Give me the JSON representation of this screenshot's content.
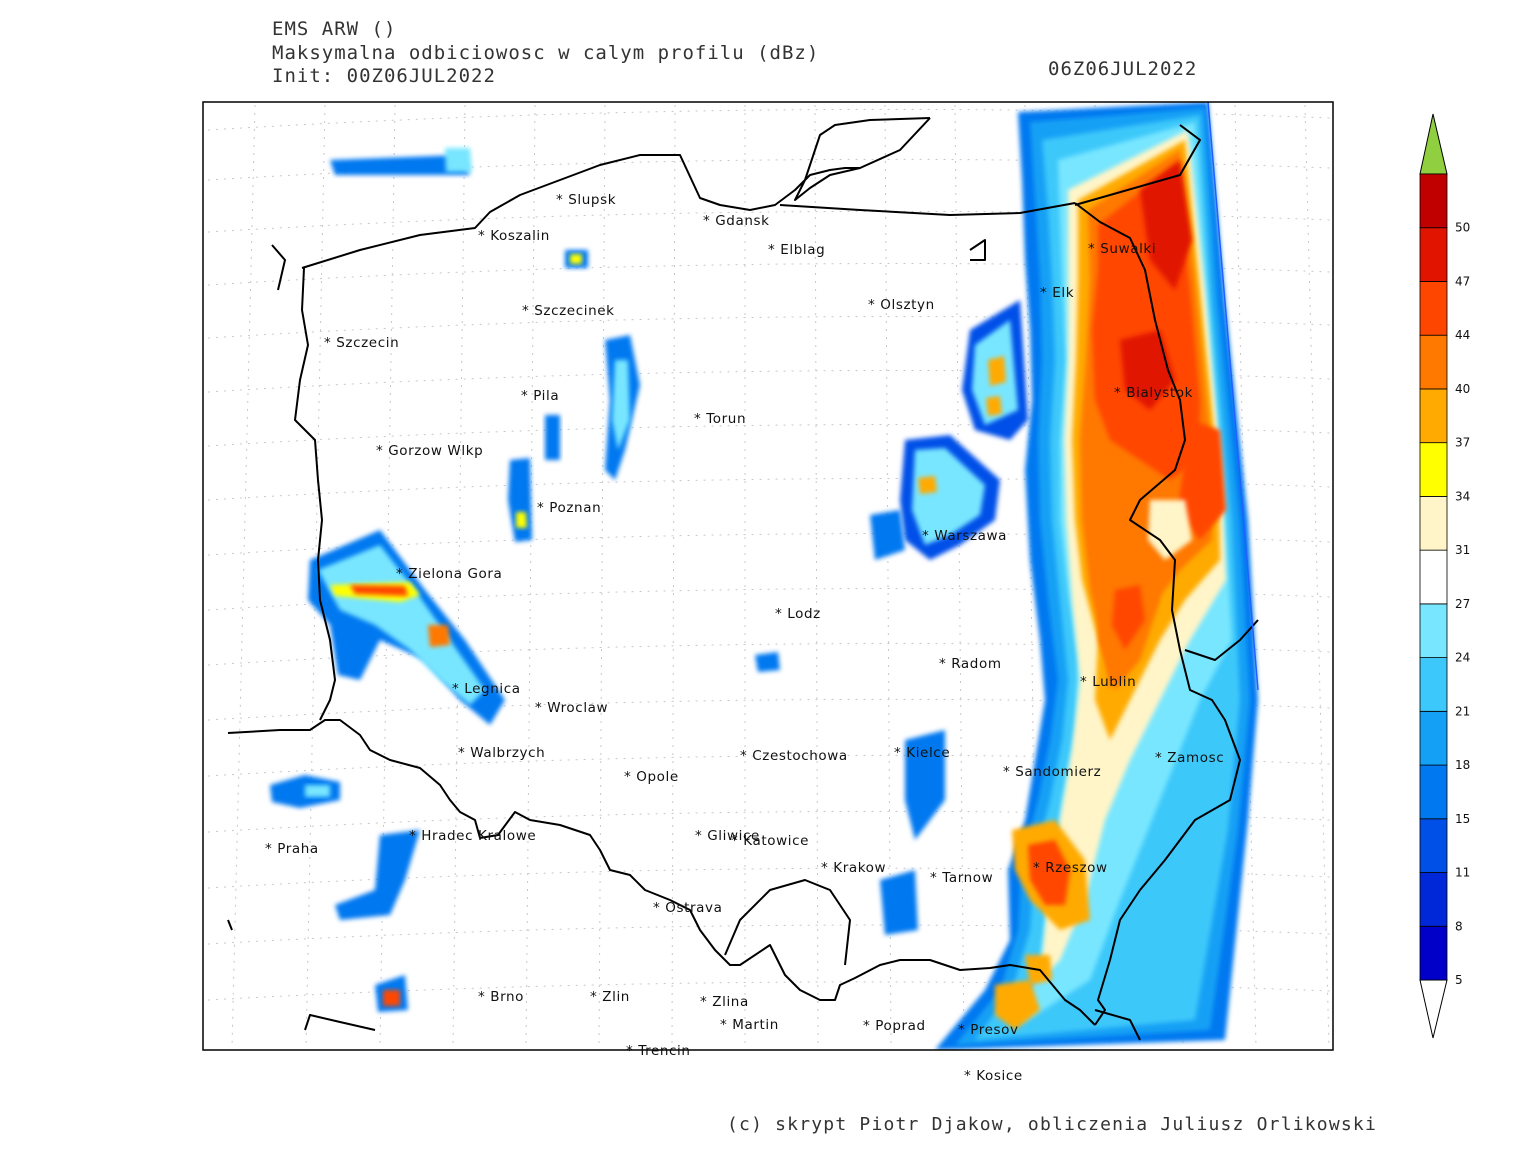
{
  "header": {
    "model": "EMS ARW ()",
    "field": "Maksymalna odbiciowosc w calym profilu (dBz)",
    "init": "Init: 00Z06JUL2022",
    "valid_time": "06Z06JUL2022"
  },
  "credit": "(c) skrypt Piotr Djakow, obliczenia Juliusz Orlikowski",
  "colorbar": {
    "levels": [
      "5",
      "8",
      "11",
      "15",
      "18",
      "21",
      "24",
      "27",
      "31",
      "34",
      "37",
      "40",
      "44",
      "47",
      "50"
    ],
    "colors": [
      "#0000c8",
      "#0028d8",
      "#0050e8",
      "#0078f0",
      "#14a0f5",
      "#3cc8fa",
      "#78e6ff",
      "#ffffff",
      "#fff5c8",
      "#ffff00",
      "#ffaa00",
      "#ff7800",
      "#ff4600",
      "#e11400",
      "#c00000"
    ],
    "under_color": "#ffffff",
    "over_color": "#90d040"
  },
  "cities": [
    {
      "name": "Slupsk"
    },
    {
      "name": "Gdansk"
    },
    {
      "name": "Koszalin"
    },
    {
      "name": "Elblag"
    },
    {
      "name": "Suwalki"
    },
    {
      "name": "Elk"
    },
    {
      "name": "Olsztyn"
    },
    {
      "name": "Szczecinek"
    },
    {
      "name": "Szczecin"
    },
    {
      "name": "Pila"
    },
    {
      "name": "Bialystok"
    },
    {
      "name": "Torun"
    },
    {
      "name": "Gorzow Wlkp"
    },
    {
      "name": "Poznan"
    },
    {
      "name": "Warszawa"
    },
    {
      "name": "Zielona Gora"
    },
    {
      "name": "Lodz"
    },
    {
      "name": "Radom"
    },
    {
      "name": "Lublin"
    },
    {
      "name": "Legnica"
    },
    {
      "name": "Wroclaw"
    },
    {
      "name": "Walbrzych"
    },
    {
      "name": "Czestochowa"
    },
    {
      "name": "Kielce"
    },
    {
      "name": "Zamosc"
    },
    {
      "name": "Opole"
    },
    {
      "name": "Sandomierz"
    },
    {
      "name": "Hradec Kralowe"
    },
    {
      "name": "Gliwice"
    },
    {
      "name": "Katowice"
    },
    {
      "name": "Praha"
    },
    {
      "name": "Krakow"
    },
    {
      "name": "Rzeszow"
    },
    {
      "name": "Tarnow"
    },
    {
      "name": "Ostrava"
    },
    {
      "name": "Brno"
    },
    {
      "name": "Zlin"
    },
    {
      "name": "Zlina"
    },
    {
      "name": "Poprad"
    },
    {
      "name": "Presov"
    },
    {
      "name": "Martin"
    },
    {
      "name": "Trencin"
    },
    {
      "name": "Kosice"
    }
  ]
}
